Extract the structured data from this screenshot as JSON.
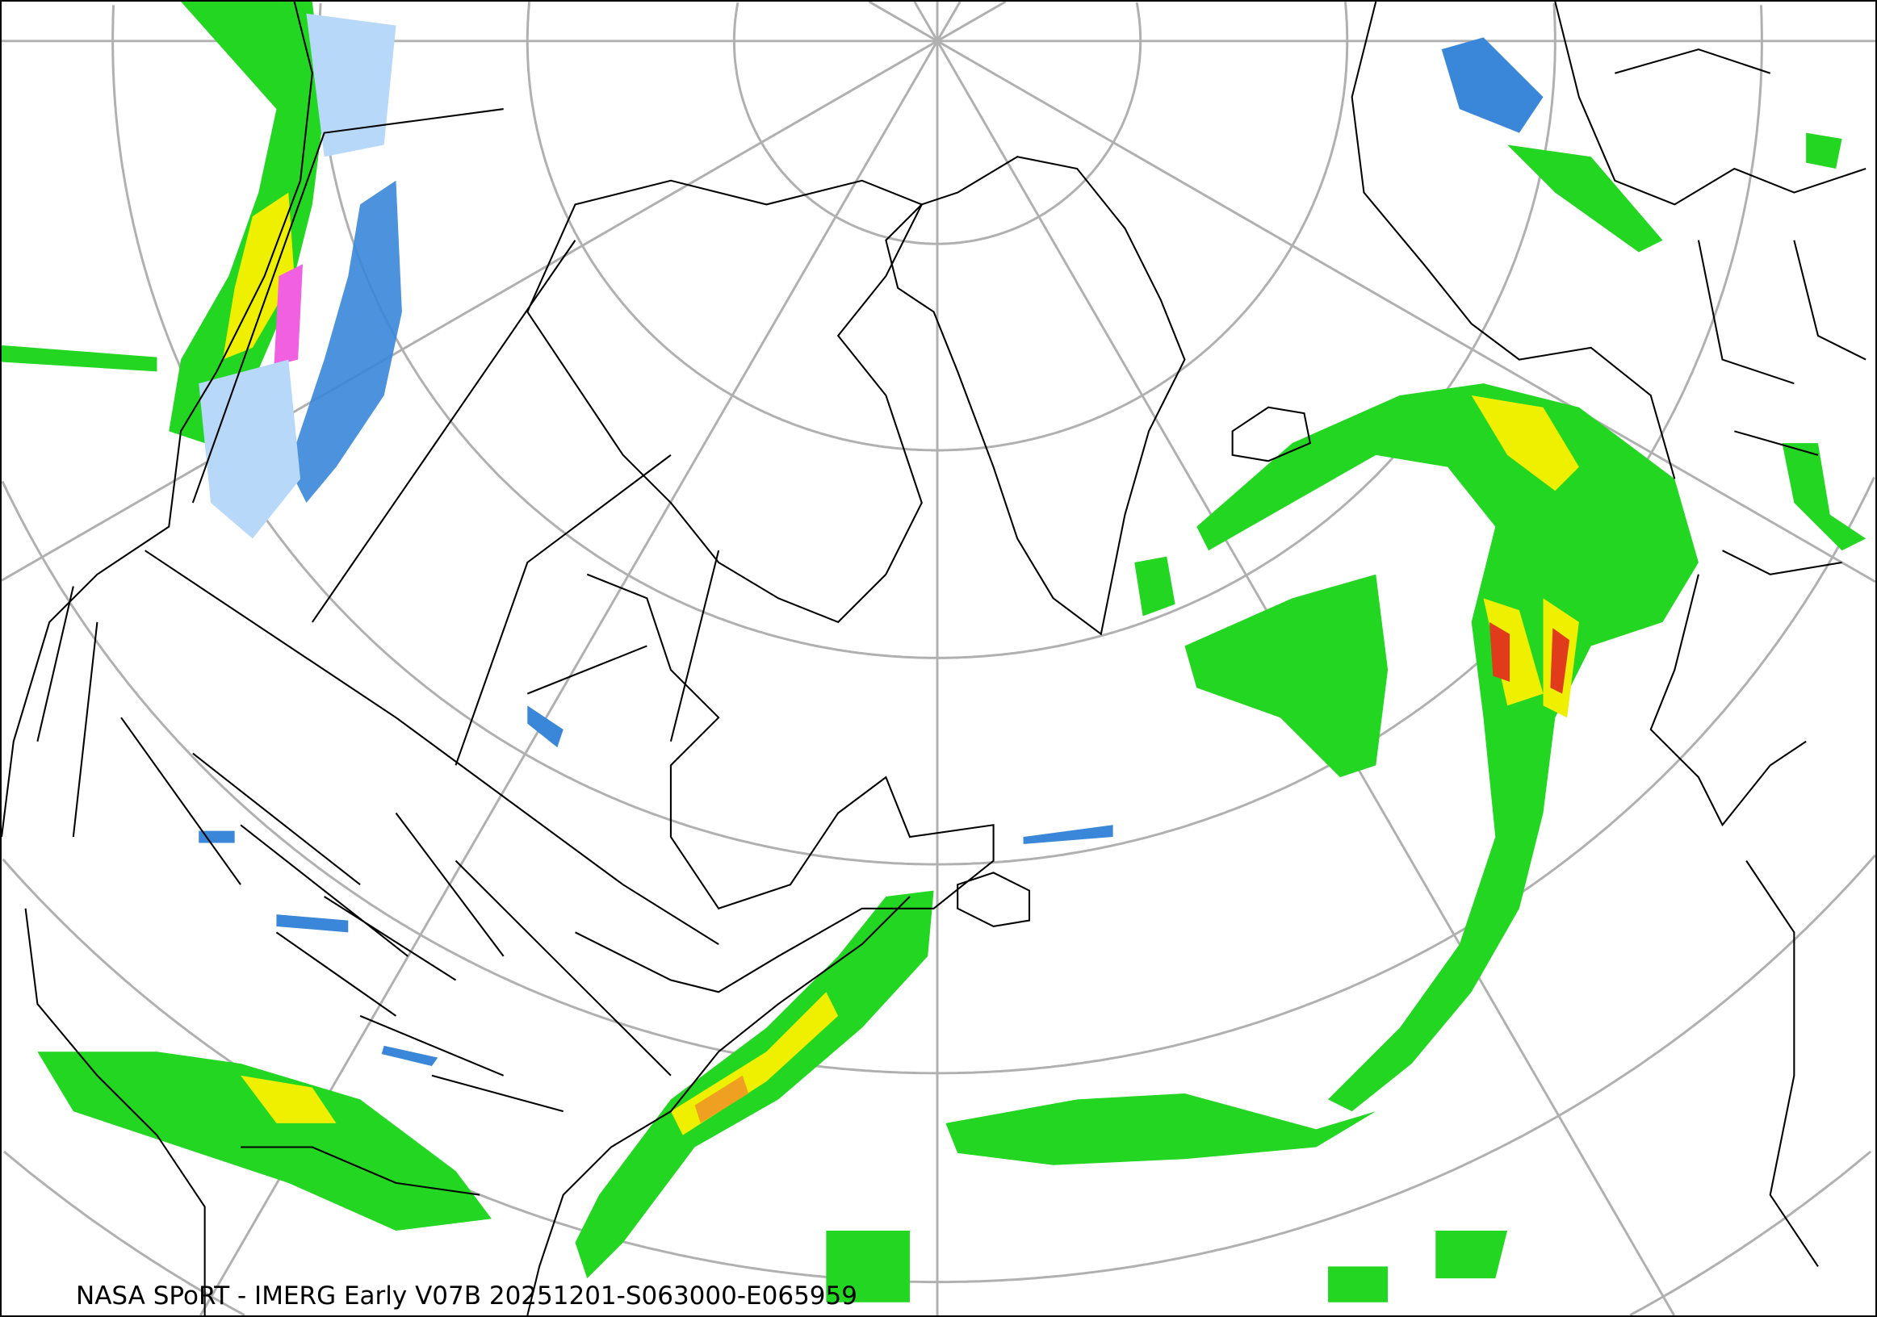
{
  "map": {
    "caption": "NASA SPoRT - IMERG Early V07B 20251201-S063000-E065959",
    "projection": "polar stereographic, North Atlantic / North America",
    "colors": {
      "graticule": "#b0b0b0",
      "coastline": "#000000",
      "precip_light_blue": "#b7d8f8",
      "precip_blue": "#3a86d8",
      "precip_dark_green": "#0a7a14",
      "precip_green": "#22d622",
      "precip_yellow": "#eef000",
      "precip_orange": "#f0a020",
      "precip_red": "#e03c1c",
      "precip_magenta": "#f060e0"
    }
  }
}
